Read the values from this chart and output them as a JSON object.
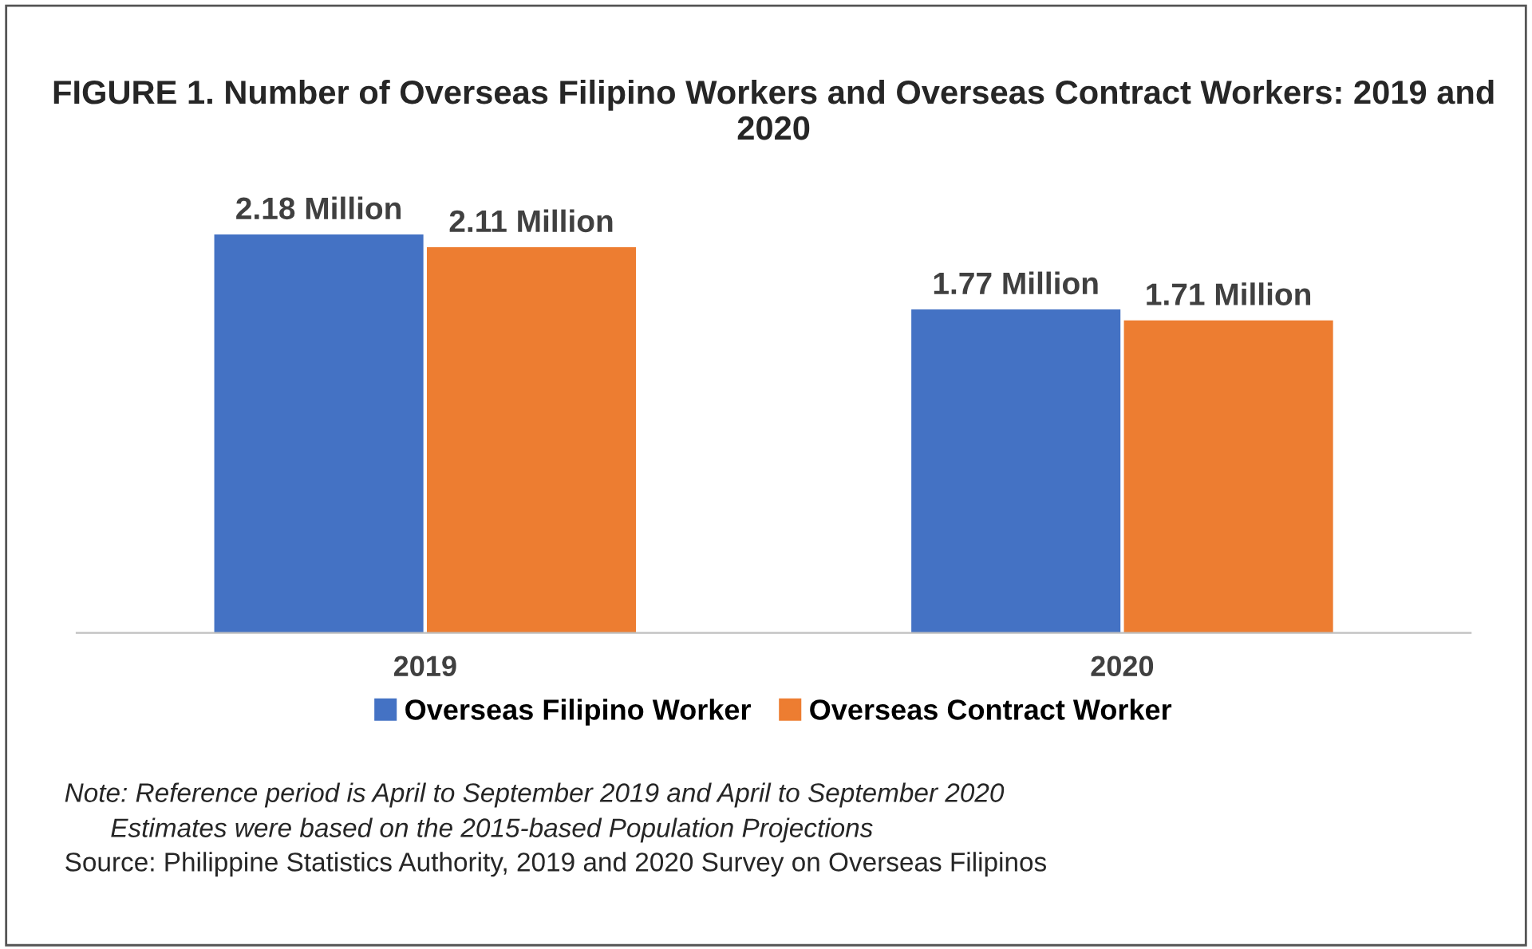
{
  "chart_data": {
    "type": "bar",
    "title": "FIGURE 1. Number of Overseas Filipino Workers and Overseas Contract Workers: 2019 and 2020",
    "categories": [
      "2019",
      "2020"
    ],
    "series": [
      {
        "name": "Overseas Filipino Worker",
        "color": "#4472c4",
        "values": [
          2.18,
          1.77
        ],
        "value_labels": [
          "2.18 Million",
          "1.77 Million"
        ]
      },
      {
        "name": "Overseas Contract Worker",
        "color": "#ed7d31",
        "values": [
          2.11,
          1.71
        ],
        "value_labels": [
          "2.11 Million",
          "1.71 Million"
        ]
      }
    ],
    "legend": "bottom",
    "grid": false,
    "annotations": [
      "Note: Reference period is April to September 2019 and April to September 2020",
      "Estimates were based on the 2015-based Population Projections",
      "Source: Philippine Statistics Authority, 2019 and 2020 Survey on Overseas Filipinos"
    ]
  }
}
